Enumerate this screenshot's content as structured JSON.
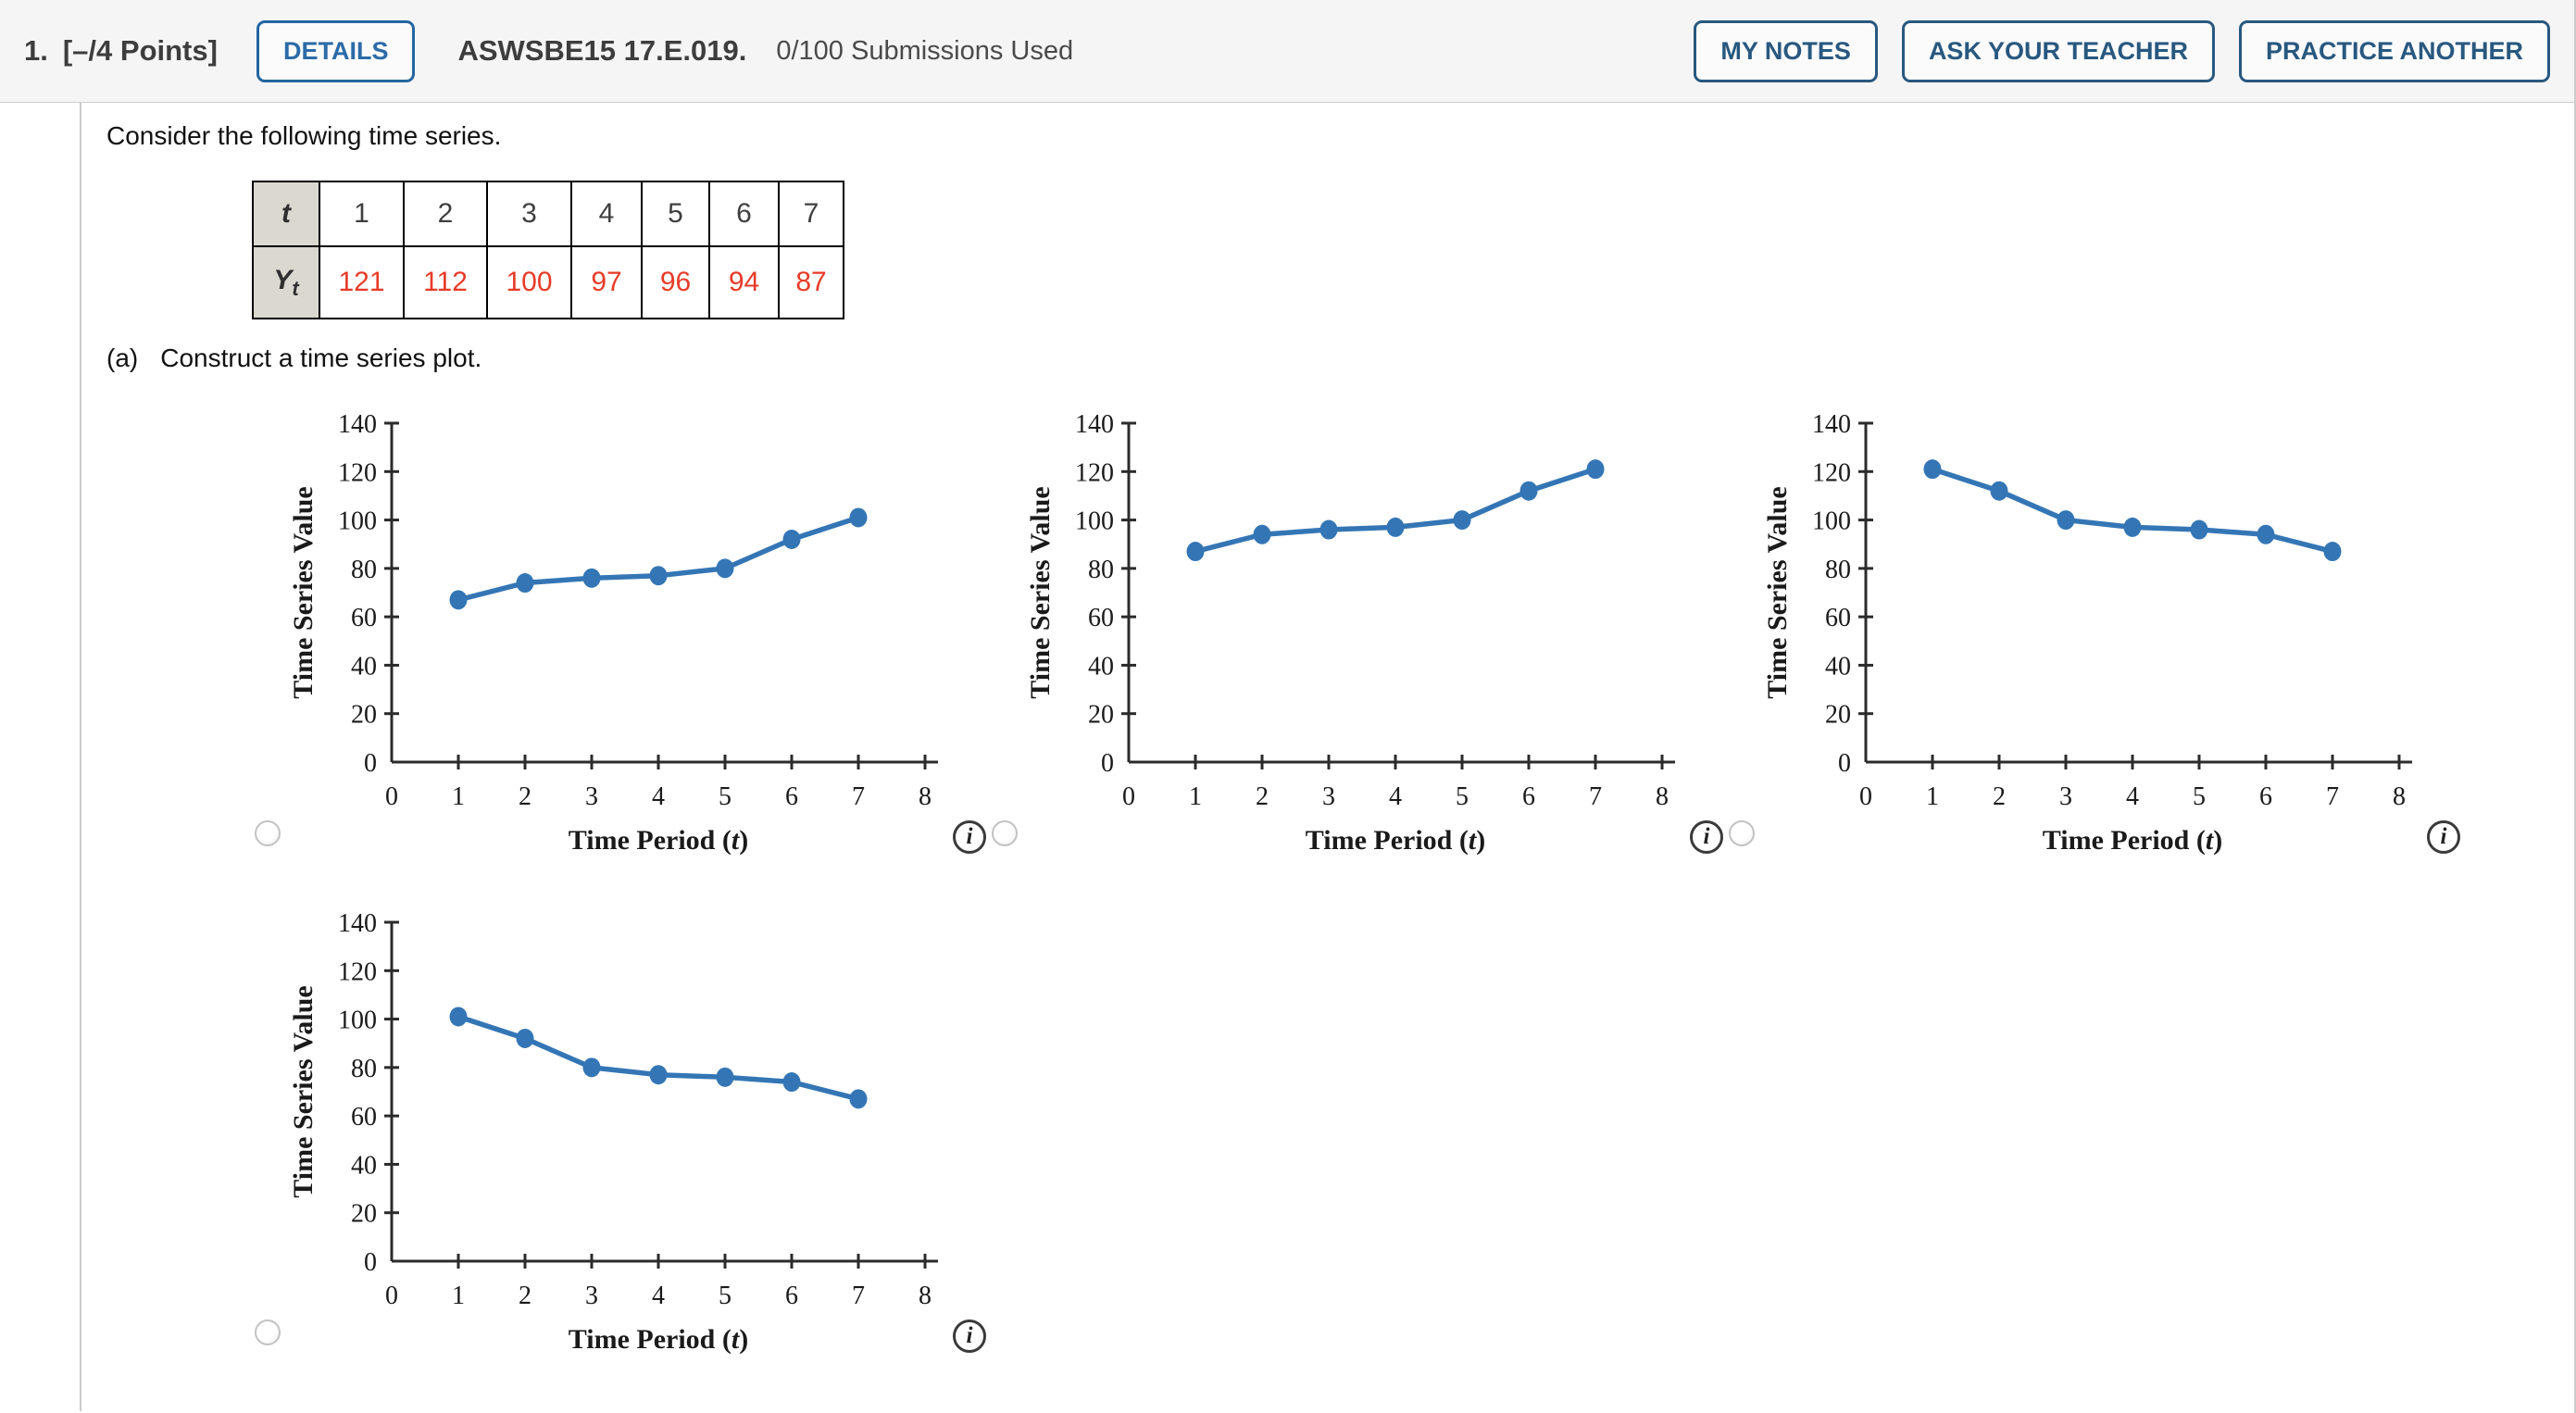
{
  "header": {
    "question_number": "1.",
    "points_label": "[–/4 Points]",
    "details_button": "DETAILS",
    "assignment_code": "ASWSBE15 17.E.019.",
    "submissions_text": "0/100 Submissions Used",
    "my_notes_button": "MY NOTES",
    "ask_teacher_button": "ASK YOUR TEACHER",
    "practice_another_button": "PRACTICE ANOTHER"
  },
  "question": {
    "intro_text": "Consider the following time series.",
    "part_a_label": "(a)",
    "part_a_text": "Construct a time series plot.",
    "table": {
      "row1_header": "t",
      "row2_header_base": "Y",
      "row2_header_sub": "t",
      "t_values": [
        "1",
        "2",
        "3",
        "4",
        "5",
        "6",
        "7"
      ],
      "y_values": [
        "121",
        "112",
        "100",
        "97",
        "96",
        "94",
        "87"
      ]
    }
  },
  "icons": {
    "info_glyph": "i"
  },
  "colors": {
    "line_blue": "#3476b5",
    "table_value_red": "#e73b28",
    "button_navy": "#28587f",
    "details_blue": "#2b6ba8",
    "header_bg": "#f5f5f6",
    "table_header_bg": "#dbd8d0",
    "border_gray": "#cccccc"
  },
  "chart_data": [
    {
      "id": "plot-option-1",
      "type": "line",
      "selected": false,
      "x": [
        1,
        2,
        3,
        4,
        5,
        6,
        7
      ],
      "values": [
        67,
        74,
        76,
        77,
        80,
        92,
        101
      ],
      "xlabel": "Time Period (t)",
      "ylabel": "Time Series Value",
      "xlim": [
        0,
        8
      ],
      "ylim": [
        0,
        140
      ],
      "xticks": [
        0,
        1,
        2,
        3,
        4,
        5,
        6,
        7,
        8
      ],
      "yticks": [
        0,
        20,
        40,
        60,
        80,
        100,
        120,
        140
      ],
      "line_color": "#3476b5",
      "marker": "circle",
      "grid": false,
      "legend": "none"
    },
    {
      "id": "plot-option-2",
      "type": "line",
      "selected": false,
      "x": [
        1,
        2,
        3,
        4,
        5,
        6,
        7
      ],
      "values": [
        87,
        94,
        96,
        97,
        100,
        112,
        121
      ],
      "xlabel": "Time Period (t)",
      "ylabel": "Time Series Value",
      "xlim": [
        0,
        8
      ],
      "ylim": [
        0,
        140
      ],
      "xticks": [
        0,
        1,
        2,
        3,
        4,
        5,
        6,
        7,
        8
      ],
      "yticks": [
        0,
        20,
        40,
        60,
        80,
        100,
        120,
        140
      ],
      "line_color": "#3476b5",
      "marker": "circle",
      "grid": false,
      "legend": "none"
    },
    {
      "id": "plot-option-3",
      "type": "line",
      "selected": false,
      "x": [
        1,
        2,
        3,
        4,
        5,
        6,
        7
      ],
      "values": [
        121,
        112,
        100,
        97,
        96,
        94,
        87
      ],
      "xlabel": "Time Period (t)",
      "ylabel": "Time Series Value",
      "xlim": [
        0,
        8
      ],
      "ylim": [
        0,
        140
      ],
      "xticks": [
        0,
        1,
        2,
        3,
        4,
        5,
        6,
        7,
        8
      ],
      "yticks": [
        0,
        20,
        40,
        60,
        80,
        100,
        120,
        140
      ],
      "line_color": "#3476b5",
      "marker": "circle",
      "grid": false,
      "legend": "none"
    },
    {
      "id": "plot-option-4",
      "type": "line",
      "selected": false,
      "x": [
        1,
        2,
        3,
        4,
        5,
        6,
        7
      ],
      "values": [
        101,
        92,
        80,
        77,
        76,
        74,
        67
      ],
      "xlabel": "Time Period (t)",
      "ylabel": "Time Series Value",
      "xlim": [
        0,
        8
      ],
      "ylim": [
        0,
        140
      ],
      "xticks": [
        0,
        1,
        2,
        3,
        4,
        5,
        6,
        7,
        8
      ],
      "yticks": [
        0,
        20,
        40,
        60,
        80,
        100,
        120,
        140
      ],
      "line_color": "#3476b5",
      "marker": "circle",
      "grid": false,
      "legend": "none"
    }
  ]
}
